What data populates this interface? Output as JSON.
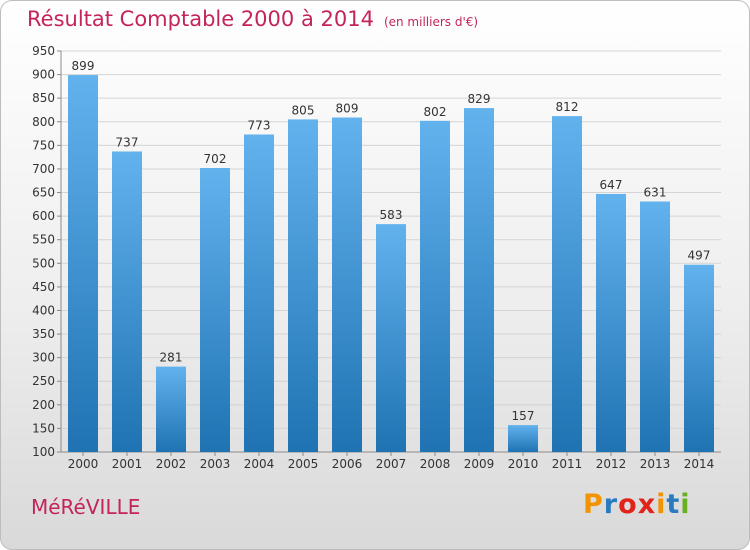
{
  "title": "Résultat Comptable 2000 à 2014",
  "subtitle": "(en milliers d'€)",
  "commune": "MéRéVILLE",
  "logo": {
    "letters": [
      "P",
      "r",
      "o",
      "x",
      "i",
      "t",
      "i"
    ],
    "colors": [
      "#f29400",
      "#2a7abf",
      "#e2231a",
      "#e2231a",
      "#f29400",
      "#2a7abf",
      "#6ab023"
    ]
  },
  "colors": {
    "bar_light": "#62b2ee",
    "bar_dark": "#1f73b2",
    "title": "#c4245a",
    "grid": "#d4d4d4",
    "axis": "#8a8a8a"
  },
  "chart_data": {
    "type": "bar",
    "categories": [
      "2000",
      "2001",
      "2002",
      "2003",
      "2004",
      "2005",
      "2006",
      "2007",
      "2008",
      "2009",
      "2010",
      "2011",
      "2012",
      "2013",
      "2014"
    ],
    "values": [
      899,
      737,
      281,
      702,
      773,
      805,
      809,
      583,
      802,
      829,
      157,
      812,
      647,
      631,
      497
    ],
    "data_labels": [
      "899",
      "737",
      "281",
      "702",
      "773",
      "805",
      "809",
      "583",
      "802",
      "829",
      "157",
      "812",
      "647",
      "631",
      "497"
    ],
    "y_ticks": [
      "100",
      "150",
      "200",
      "250",
      "300",
      "350",
      "400",
      "450",
      "500",
      "550",
      "600",
      "650",
      "700",
      "750",
      "800",
      "850",
      "900",
      "950"
    ],
    "ylim": [
      100,
      950
    ],
    "grid": true,
    "legend": "none"
  }
}
